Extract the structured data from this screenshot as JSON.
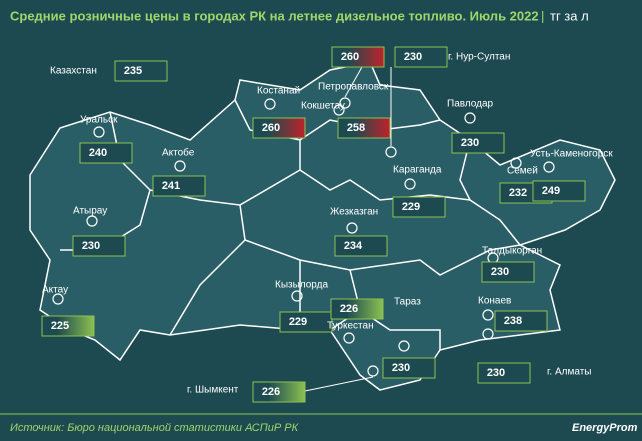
{
  "header": {
    "title": "Средние розничные цены в городах РК на летнее дизельное топливо. Июль 2022",
    "unit": "тг за л"
  },
  "cities": [
    {
      "name": "Казахстан",
      "value": 235
    },
    {
      "name": "Уральск",
      "value": 240
    },
    {
      "name": "Актобе",
      "value": 241
    },
    {
      "name": "Атырау",
      "value": 230
    },
    {
      "name": "Актау",
      "value": 225
    },
    {
      "name": "Костанай",
      "value": 260
    },
    {
      "name": "Петропавловск",
      "value": 260
    },
    {
      "name": "Кокшетау",
      "value": 258
    },
    {
      "name": "г. Нур-Султан",
      "value": 230
    },
    {
      "name": "Павлодар",
      "value": 230
    },
    {
      "name": "Караганда",
      "value": 229
    },
    {
      "name": "Семей",
      "value": 232
    },
    {
      "name": "Усть-Каменогорск",
      "value": 249
    },
    {
      "name": "Жезказган",
      "value": 234
    },
    {
      "name": "Талдыкорган",
      "value": 230
    },
    {
      "name": "Кызылорда",
      "value": 229
    },
    {
      "name": "Туркестан",
      "value": 226
    },
    {
      "name": "Тараз",
      "value": 230
    },
    {
      "name": "Конаев",
      "value": 238
    },
    {
      "name": "г. Алматы",
      "value": 230
    },
    {
      "name": "г. Шымкент",
      "value": 226
    }
  ],
  "footer": {
    "source": "Источник: Бюро национальной статистики АСПиР РК",
    "logo": "EnergyProm"
  }
}
